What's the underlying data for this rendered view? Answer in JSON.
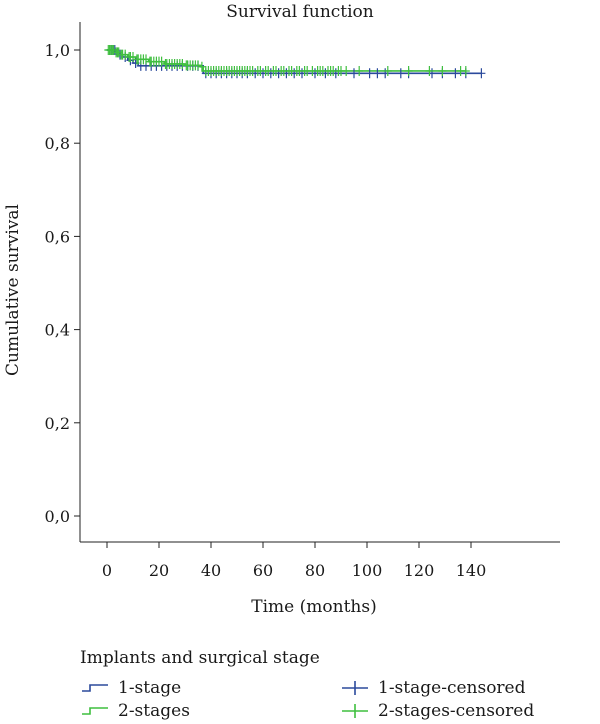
{
  "chart_data": {
    "type": "line",
    "title": "Survival function",
    "xlabel": "Time (months)",
    "ylabel": "Cumulative survival",
    "xlim": [
      0,
      145
    ],
    "ylim": [
      0,
      1.0
    ],
    "x_ticks": [
      0,
      20,
      40,
      60,
      80,
      100,
      120,
      140
    ],
    "y_ticks": [
      0.0,
      0.2,
      0.4,
      0.6,
      0.8,
      1.0
    ],
    "x_tick_labels": [
      "0",
      "20",
      "40",
      "60",
      "80",
      "100",
      "120",
      "140"
    ],
    "y_tick_labels": [
      "0,0",
      "0,2",
      "0,4",
      "0,6",
      "0,8",
      "1,0"
    ],
    "grid": false,
    "legend_title": "Implants and surgical stage",
    "legend_position": "bottom",
    "series": [
      {
        "name": "1-stage",
        "color": "#2b4a9c",
        "step": [
          [
            0,
            1.0
          ],
          [
            4,
            0.99
          ],
          [
            6,
            0.985
          ],
          [
            8,
            0.978
          ],
          [
            10,
            0.972
          ],
          [
            12,
            0.966
          ],
          [
            36,
            0.966
          ],
          [
            37,
            0.95
          ],
          [
            144,
            0.95
          ]
        ],
        "censored_name": "1-stage-censored",
        "censored": [
          1,
          2,
          3,
          5,
          7,
          9,
          11,
          13,
          15,
          17,
          19,
          21,
          23,
          25,
          27,
          29,
          31,
          33,
          35,
          38,
          40,
          42,
          44,
          46,
          48,
          50,
          52,
          54,
          57,
          60,
          63,
          66,
          69,
          72,
          75,
          80,
          84,
          88,
          95,
          101,
          104,
          107,
          113,
          116,
          125,
          129,
          134,
          138,
          144
        ]
      },
      {
        "name": "2-stages",
        "color": "#3fbf3f",
        "step": [
          [
            0,
            1.0
          ],
          [
            3,
            0.995
          ],
          [
            5,
            0.99
          ],
          [
            8,
            0.985
          ],
          [
            11,
            0.98
          ],
          [
            16,
            0.975
          ],
          [
            22,
            0.97
          ],
          [
            30,
            0.967
          ],
          [
            36,
            0.964
          ],
          [
            37,
            0.955
          ],
          [
            138,
            0.955
          ]
        ],
        "censored_name": "2-stages-censored",
        "censored": [
          0.5,
          1,
          1.5,
          2,
          2.5,
          3.5,
          4,
          4.5,
          5.5,
          6,
          7,
          8.5,
          9,
          10,
          11.5,
          12,
          13,
          14,
          15,
          16.5,
          17,
          18,
          19,
          20,
          21,
          22.5,
          23,
          24,
          25,
          26,
          27,
          28,
          29,
          30.5,
          31,
          32,
          33,
          34,
          35,
          36.5,
          38,
          39,
          40,
          41,
          42,
          43,
          44,
          45,
          46,
          47,
          48,
          49,
          50,
          51,
          52,
          53,
          54,
          55,
          56,
          58,
          59,
          61,
          62,
          64,
          65,
          67,
          68,
          70,
          71,
          73,
          74,
          76,
          77,
          79,
          81,
          82,
          83,
          85,
          86,
          87,
          89,
          90,
          92,
          97,
          108,
          116,
          124,
          129,
          136,
          138
        ]
      }
    ]
  }
}
